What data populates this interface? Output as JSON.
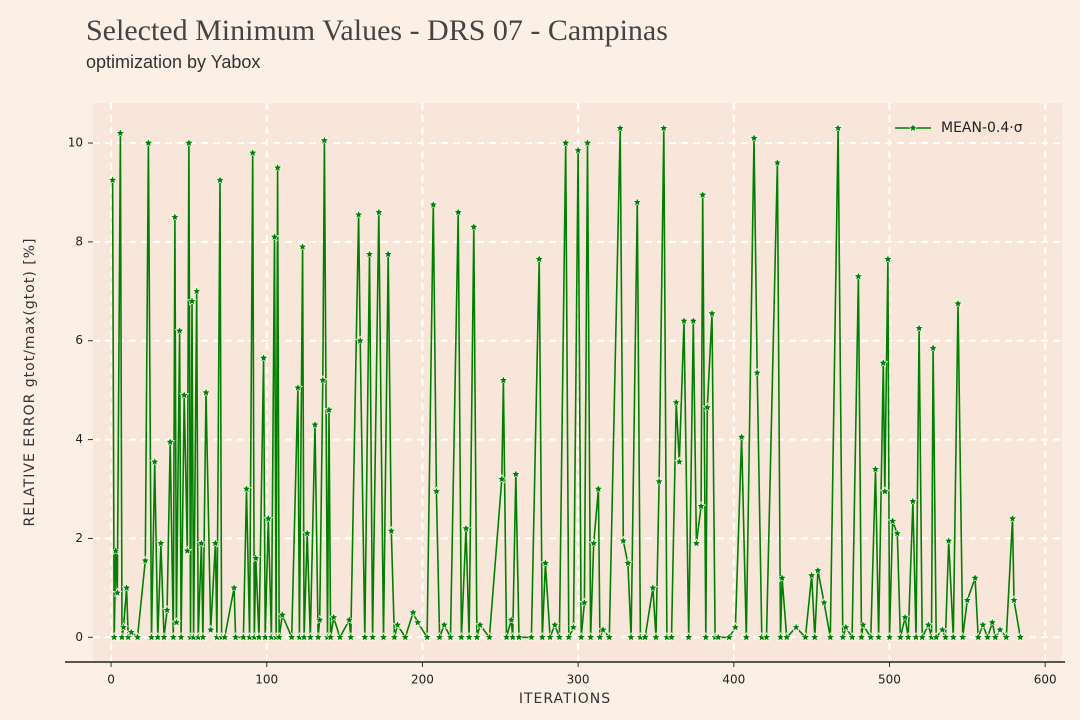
{
  "chart_data": {
    "type": "line",
    "title": "Selected Minimum Values - DRS 07 - Campinas",
    "subtitle": "optimization by Yabox",
    "x_label": "ITERATIONS",
    "y_label": "RELATIVE ERROR gtot/max(gtot) [%]",
    "xlim": [
      -11.6,
      610.8
    ],
    "ylim": [
      -0.5,
      10.81
    ],
    "xticks": [
      0,
      100,
      200,
      300,
      400,
      500,
      600
    ],
    "yticks": [
      0,
      2,
      4,
      6,
      8,
      10
    ],
    "grid": true,
    "legend": "upper right",
    "x": [
      1,
      2,
      3,
      4,
      6,
      7,
      8,
      10,
      11,
      13,
      17,
      22,
      24,
      26,
      28,
      30,
      32,
      34,
      36,
      38,
      40,
      41,
      42,
      44,
      45,
      47,
      49,
      50,
      51,
      52,
      53,
      55,
      56,
      58,
      59,
      61,
      64,
      67,
      68,
      70,
      71,
      73,
      79,
      80,
      85,
      87,
      89,
      91,
      92,
      93,
      95,
      98,
      99,
      101,
      103,
      105,
      106,
      107,
      108,
      110,
      116,
      120,
      121,
      123,
      124,
      126,
      128,
      131,
      133,
      134,
      136,
      137,
      139,
      140,
      141,
      143,
      147,
      153,
      154,
      159,
      160,
      163,
      166,
      168,
      172,
      175,
      178,
      180,
      182,
      184,
      189,
      194,
      197,
      203,
      207,
      209,
      211,
      214,
      218,
      223,
      225,
      228,
      230,
      233,
      235,
      237,
      243,
      251,
      252,
      254,
      257,
      258,
      260,
      262,
      270,
      275,
      277,
      279,
      282,
      285,
      288,
      292,
      294,
      297,
      300,
      302,
      304,
      306,
      308,
      310,
      313,
      314,
      316,
      320,
      327,
      329,
      332,
      334,
      338,
      340,
      343,
      348,
      350,
      352,
      355,
      357,
      360,
      363,
      365,
      368,
      371,
      374,
      376,
      379,
      380,
      382,
      383,
      386,
      388,
      390,
      397,
      401,
      405,
      408,
      413,
      415,
      418,
      421,
      428,
      430,
      431,
      434,
      440,
      446,
      450,
      452,
      454,
      458,
      462,
      467,
      470,
      472,
      476,
      480,
      482,
      483,
      488,
      491,
      493,
      496,
      497,
      499,
      500,
      502,
      505,
      507,
      510,
      512,
      515,
      517,
      519,
      521,
      525,
      527,
      528,
      530,
      534,
      536,
      538,
      541,
      544,
      547,
      550,
      555,
      557,
      560,
      563,
      566,
      568,
      571,
      575,
      579,
      580,
      584
    ],
    "series": [
      {
        "name": "MEAN-0.4·σ",
        "color": "#008000",
        "values": [
          9.25,
          0,
          1.75,
          0.9,
          10.2,
          0,
          0.2,
          1.0,
          0,
          0.1,
          0,
          1.55,
          10.0,
          0,
          3.55,
          0,
          1.9,
          0,
          0.55,
          3.95,
          0,
          8.5,
          0.3,
          6.2,
          0,
          4.9,
          1.75,
          10.0,
          0,
          6.8,
          0,
          7.0,
          0,
          1.9,
          0,
          4.95,
          0.15,
          1.9,
          0,
          9.25,
          0,
          0,
          1.0,
          0,
          0,
          3.0,
          0,
          9.8,
          0,
          1.6,
          0,
          5.65,
          0,
          2.4,
          0,
          8.1,
          0,
          9.5,
          0,
          0.45,
          0,
          5.05,
          0,
          7.9,
          0,
          2.1,
          0,
          4.3,
          0,
          0.35,
          5.2,
          10.05,
          0,
          4.6,
          0,
          0.4,
          0,
          0.35,
          0,
          8.55,
          6.0,
          0,
          7.75,
          0,
          8.6,
          0,
          7.75,
          2.15,
          0,
          0.25,
          0,
          0.5,
          0.3,
          0,
          8.75,
          2.95,
          0,
          0.25,
          0,
          8.6,
          0,
          2.2,
          0,
          8.3,
          0,
          0.25,
          0,
          3.2,
          5.2,
          0,
          0.35,
          0,
          3.3,
          0,
          0,
          7.65,
          0,
          1.5,
          0,
          0.25,
          0,
          10.0,
          0,
          0.2,
          9.85,
          0,
          0.7,
          10.0,
          0,
          1.9,
          3.0,
          0,
          0.15,
          0,
          10.3,
          1.95,
          1.5,
          0,
          8.8,
          0,
          0,
          1.0,
          0,
          3.15,
          10.3,
          0,
          0,
          4.75,
          3.55,
          6.4,
          0,
          6.4,
          1.9,
          2.65,
          8.95,
          0,
          4.65,
          6.55,
          0,
          0,
          0,
          0.2,
          4.05,
          0,
          10.1,
          5.35,
          0,
          0,
          9.6,
          0,
          1.2,
          0,
          0.2,
          0,
          1.25,
          0,
          1.35,
          0.7,
          0,
          10.3,
          0,
          0.2,
          0,
          7.3,
          0,
          0.25,
          0,
          3.4,
          0,
          5.55,
          2.95,
          7.65,
          0,
          2.35,
          2.1,
          0,
          0.4,
          0,
          2.75,
          0,
          6.25,
          0,
          0.25,
          0,
          5.85,
          0,
          0.15,
          0,
          1.95,
          0,
          6.75,
          0,
          0.75,
          1.2,
          0,
          0.25,
          0,
          0.3,
          0,
          0.15,
          0,
          2.4,
          0.75,
          0
        ]
      }
    ]
  }
}
